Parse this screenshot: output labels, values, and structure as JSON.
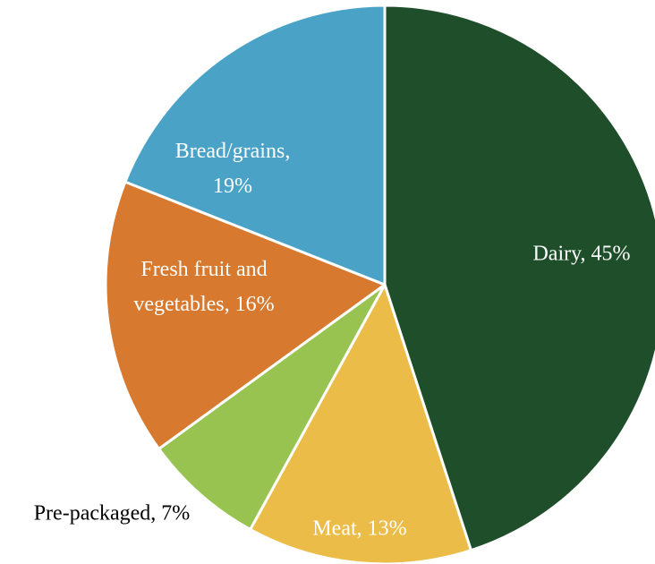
{
  "chart_data": {
    "type": "pie",
    "title": "",
    "start_angle_deg": 0,
    "direction": "clockwise",
    "slices": [
      {
        "label_lines": [
          "Dairy, 45%"
        ],
        "value": 45,
        "color": "#1f4f2a",
        "label_color": "#ffffff"
      },
      {
        "label_lines": [
          "Meat, 13%"
        ],
        "value": 13,
        "color": "#ecbc48",
        "label_color": "#ffffff"
      },
      {
        "label_lines": [
          "Pre-packaged, 7%"
        ],
        "value": 7,
        "color": "#98c350",
        "label_color": "#000000",
        "label_outside": true
      },
      {
        "label_lines": [
          "Fresh fruit and",
          "vegetables, 16%"
        ],
        "value": 16,
        "color": "#d7792e",
        "label_color": "#ffffff"
      },
      {
        "label_lines": [
          "Bread/grains,",
          "19%"
        ],
        "value": 19,
        "color": "#4aa3c6",
        "label_color": "#ffffff"
      }
    ]
  }
}
